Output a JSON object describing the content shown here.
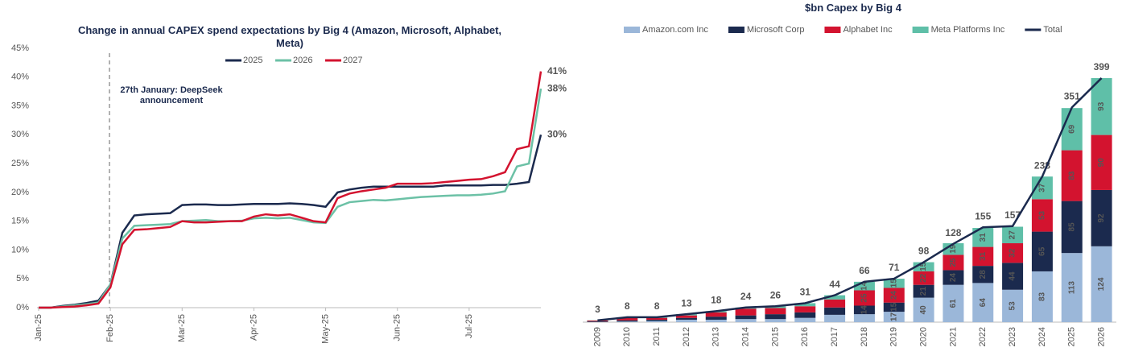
{
  "chart_data": [
    {
      "type": "line",
      "title": "Change in annual CAPEX spend expectations by Big 4 (Amazon, Microsoft, Alphabet, Meta)",
      "annotation": "27th January: DeepSeek announcement",
      "categories": [
        "Jan-25",
        null,
        null,
        null,
        null,
        null,
        "Feb-25",
        null,
        null,
        null,
        null,
        null,
        "Mar-25",
        null,
        null,
        null,
        null,
        null,
        "Apr-25",
        null,
        null,
        null,
        null,
        null,
        "May-25",
        null,
        null,
        null,
        null,
        null,
        "Jun-25",
        null,
        null,
        null,
        null,
        null,
        "Jul-25",
        null,
        null,
        null,
        null,
        null,
        null
      ],
      "series": [
        {
          "name": "2025",
          "color": "#1b2a4e",
          "values": [
            0,
            0,
            0.3,
            0.5,
            0.8,
            1.2,
            4,
            13,
            16,
            16.2,
            16.3,
            16.4,
            17.8,
            17.9,
            17.9,
            17.8,
            17.8,
            17.9,
            18,
            18,
            18,
            18.1,
            18,
            17.8,
            17.5,
            20,
            20.5,
            20.8,
            21,
            21,
            21,
            21,
            21,
            21,
            21.2,
            21.2,
            21.2,
            21.2,
            21.3,
            21.3,
            21.5,
            21.8,
            30
          ],
          "value_labels": [
            null,
            null,
            null,
            null,
            null,
            null,
            null,
            null,
            null,
            null,
            null,
            null,
            null,
            null,
            null,
            null,
            null,
            null,
            null,
            null,
            null,
            null,
            null,
            null,
            null,
            null,
            null,
            null,
            null,
            null,
            null,
            null,
            null,
            null,
            null,
            null,
            null,
            null,
            null,
            null,
            null,
            null,
            "30%"
          ]
        },
        {
          "name": "2026",
          "color": "#6cc1a6",
          "values": [
            0,
            0,
            0.2,
            0.4,
            0.6,
            0.9,
            4,
            12,
            14.2,
            14.3,
            14.4,
            14.5,
            15,
            15.1,
            15.2,
            15,
            15,
            15.1,
            15.5,
            15.6,
            15.5,
            15.6,
            15.2,
            14.8,
            14.7,
            17.5,
            18.3,
            18.5,
            18.7,
            18.6,
            18.8,
            19,
            19.2,
            19.3,
            19.4,
            19.5,
            19.5,
            19.6,
            19.8,
            20.2,
            24.5,
            25,
            38
          ],
          "value_labels": [
            null,
            null,
            null,
            null,
            null,
            null,
            null,
            null,
            null,
            null,
            null,
            null,
            null,
            null,
            null,
            null,
            null,
            null,
            null,
            null,
            null,
            null,
            null,
            null,
            null,
            null,
            null,
            null,
            null,
            null,
            null,
            null,
            null,
            null,
            null,
            null,
            null,
            null,
            null,
            null,
            null,
            null,
            "38%"
          ]
        },
        {
          "name": "2027",
          "color": "#d3132f",
          "values": [
            0,
            0,
            0.1,
            0.2,
            0.4,
            0.7,
            3.5,
            11,
            13.5,
            13.6,
            13.8,
            14,
            15,
            14.8,
            14.8,
            14.9,
            15,
            15,
            15.8,
            16.2,
            16,
            16.2,
            15.6,
            15,
            14.8,
            19,
            19.8,
            20.2,
            20.5,
            20.8,
            21.5,
            21.5,
            21.5,
            21.6,
            21.8,
            22,
            22.2,
            22.3,
            22.8,
            23.5,
            27.5,
            28,
            41
          ],
          "value_labels": [
            null,
            null,
            null,
            null,
            null,
            null,
            null,
            null,
            null,
            null,
            null,
            null,
            null,
            null,
            null,
            null,
            null,
            null,
            null,
            null,
            null,
            null,
            null,
            null,
            null,
            null,
            null,
            null,
            null,
            null,
            null,
            null,
            null,
            null,
            null,
            null,
            null,
            null,
            null,
            null,
            null,
            null,
            "41%"
          ]
        }
      ],
      "ylim": [
        0,
        45
      ],
      "yticks": [
        {
          "value": 0,
          "label": "0%"
        },
        {
          "value": 5,
          "label": "5%"
        },
        {
          "value": 10,
          "label": "10%"
        },
        {
          "value": 15,
          "label": "15%"
        },
        {
          "value": 20,
          "label": "20%"
        },
        {
          "value": 25,
          "label": "25%"
        },
        {
          "value": 30,
          "label": "30%"
        },
        {
          "value": 35,
          "label": "35%"
        },
        {
          "value": 40,
          "label": "40%"
        },
        {
          "value": 45,
          "label": "45%"
        }
      ],
      "legend": "top"
    },
    {
      "type": "bar",
      "stacked": true,
      "title": "$bn Capex by Big 4",
      "categories": [
        "2009",
        "2010",
        "2011",
        "2012",
        "2013",
        "2014",
        "2015",
        "2016",
        "2017",
        "2018",
        "2019",
        "2020",
        "2021",
        "2022",
        "2023",
        "2024",
        "2025",
        "2026"
      ],
      "series": [
        {
          "name": "Amazon.com Inc",
          "color": "#9bb7d9",
          "values": [
            0.4,
            1,
            2,
            4,
            4,
            5,
            5,
            7,
            12,
            13,
            17,
            40,
            61,
            64,
            53,
            83,
            113,
            124
          ]
        },
        {
          "name": "Microsoft Corp",
          "color": "#1b2a4e",
          "values": [
            1,
            2,
            2,
            3,
            5,
            6,
            8,
            9,
            12,
            14,
            15,
            21,
            24,
            28,
            44,
            65,
            85,
            92
          ]
        },
        {
          "name": "Alphabet Inc",
          "color": "#d3132f",
          "values": [
            1.2,
            4,
            3,
            4,
            7,
            11,
            10,
            10,
            13,
            25,
            24,
            22,
            25,
            31,
            32,
            53,
            83,
            90
          ]
        },
        {
          "name": "Meta Platforms Inc",
          "color": "#5fbfa8",
          "values": [
            0.4,
            1,
            1,
            2,
            2,
            2,
            3,
            5,
            7,
            14,
            15,
            15,
            19,
            31,
            27,
            37,
            69,
            93
          ]
        },
        {
          "name": "Total",
          "color": "#1b2a4e",
          "type": "line",
          "values": [
            3,
            8,
            8,
            13,
            18,
            24,
            26,
            31,
            44,
            66,
            71,
            98,
            128,
            155,
            157,
            238,
            351,
            399
          ]
        }
      ],
      "ylim": [
        0,
        420
      ],
      "legend": "top"
    }
  ]
}
